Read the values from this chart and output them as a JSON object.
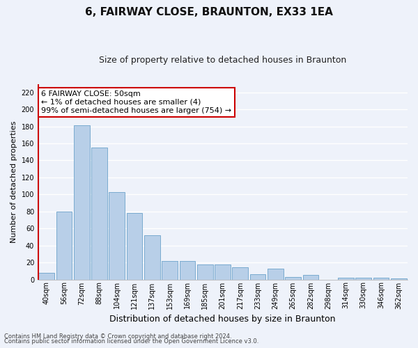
{
  "title1": "6, FAIRWAY CLOSE, BRAUNTON, EX33 1EA",
  "title2": "Size of property relative to detached houses in Braunton",
  "xlabel": "Distribution of detached houses by size in Braunton",
  "ylabel": "Number of detached properties",
  "categories": [
    "40sqm",
    "56sqm",
    "72sqm",
    "88sqm",
    "104sqm",
    "121sqm",
    "137sqm",
    "153sqm",
    "169sqm",
    "185sqm",
    "201sqm",
    "217sqm",
    "233sqm",
    "249sqm",
    "265sqm",
    "282sqm",
    "298sqm",
    "314sqm",
    "330sqm",
    "346sqm",
    "362sqm"
  ],
  "values": [
    8,
    80,
    181,
    155,
    103,
    78,
    52,
    22,
    22,
    18,
    18,
    14,
    6,
    13,
    3,
    5,
    0,
    2,
    2,
    2,
    1
  ],
  "bar_color": "#b8cfe8",
  "bar_edge_color": "#7aabcf",
  "highlight_color": "#cc0000",
  "annotation_line1": "6 FAIRWAY CLOSE: 50sqm",
  "annotation_line2": "← 1% of detached houses are smaller (4)",
  "annotation_line3": "99% of semi-detached houses are larger (754) →",
  "annotation_box_color": "white",
  "annotation_box_edge_color": "#cc0000",
  "ylim": [
    0,
    230
  ],
  "yticks": [
    0,
    20,
    40,
    60,
    80,
    100,
    120,
    140,
    160,
    180,
    200,
    220
  ],
  "footer1": "Contains HM Land Registry data © Crown copyright and database right 2024.",
  "footer2": "Contains public sector information licensed under the Open Government Licence v3.0.",
  "bg_color": "#eef2fa",
  "plot_bg_color": "#eef2fa",
  "grid_color": "#ffffff",
  "title1_fontsize": 11,
  "title2_fontsize": 9,
  "xlabel_fontsize": 9,
  "ylabel_fontsize": 8,
  "tick_fontsize": 7,
  "annotation_fontsize": 8,
  "footer_fontsize": 6
}
